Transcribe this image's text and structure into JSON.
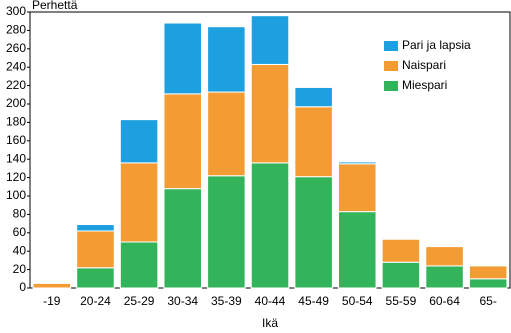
{
  "chart_data": {
    "type": "stacked-bar",
    "y_label": "Perhettä",
    "x_label": "Ikä",
    "categories": [
      "-19",
      "20-24",
      "25-29",
      "30-34",
      "35-39",
      "40-44",
      "45-49",
      "50-54",
      "55-59",
      "60-64",
      "65-"
    ],
    "series": [
      {
        "name": "Miespari",
        "color": "#33b45a",
        "values": [
          0,
          22,
          50,
          108,
          122,
          136,
          121,
          83,
          28,
          24,
          10
        ]
      },
      {
        "name": "Naispari",
        "color": "#f39c34",
        "values": [
          5,
          40,
          86,
          103,
          91,
          107,
          76,
          52,
          25,
          21,
          14
        ]
      },
      {
        "name": "Pari ja lapsia",
        "color": "#1ca0e0",
        "values": [
          0,
          7,
          47,
          77,
          71,
          53,
          21,
          2,
          0,
          0,
          0
        ]
      }
    ],
    "ylim": [
      0,
      300
    ],
    "yticks": [
      0,
      20,
      40,
      60,
      80,
      100,
      120,
      140,
      160,
      180,
      200,
      220,
      240,
      260,
      280,
      300
    ],
    "legend": "upper-right"
  }
}
